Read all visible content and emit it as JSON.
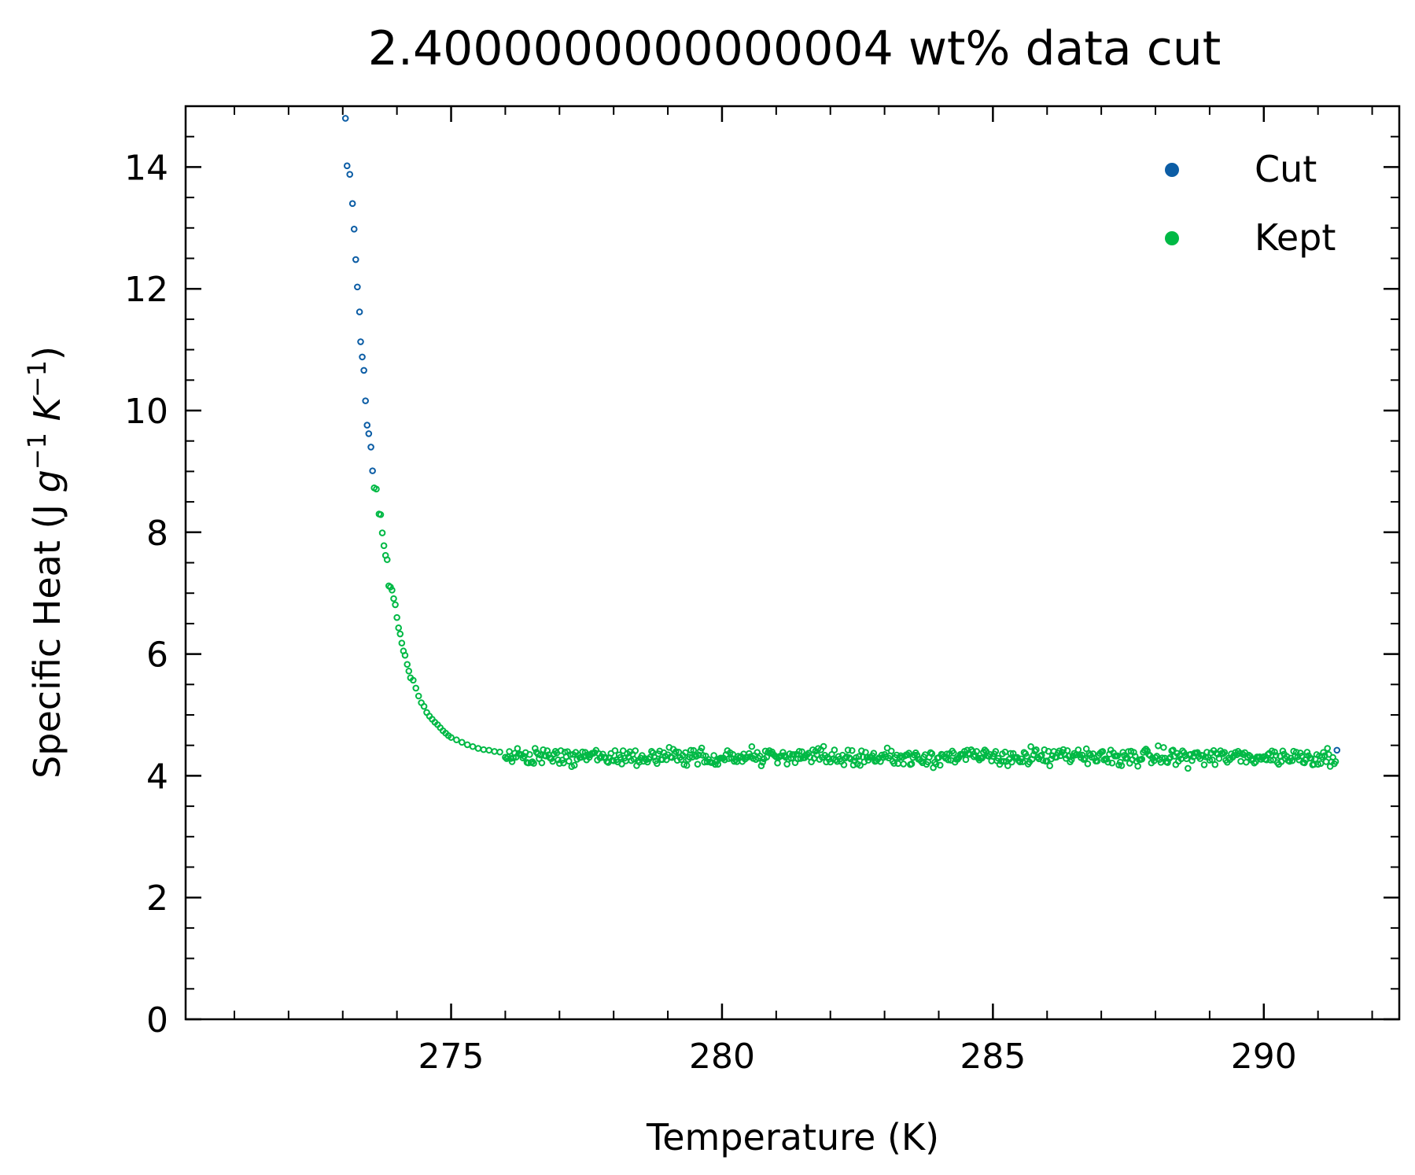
{
  "chart_data": {
    "type": "scatter",
    "title": "2.4000000000000004 wt% data cut",
    "xlabel": "Temperature (K)",
    "ylabel": {
      "prefix": "Specific Heat (J ",
      "g": "g",
      "g_exp": "−1",
      "k": "K",
      "k_exp": "−1",
      "suffix": ")"
    },
    "xlim": [
      270.1,
      292.5
    ],
    "ylim": [
      0,
      15
    ],
    "x_ticks": [
      {
        "value": 275,
        "label": "275"
      },
      {
        "value": 280,
        "label": "280"
      },
      {
        "value": 285,
        "label": "285"
      },
      {
        "value": 290,
        "label": "290"
      }
    ],
    "y_ticks": [
      {
        "value": 0,
        "label": "0"
      },
      {
        "value": 2,
        "label": "2"
      },
      {
        "value": 4,
        "label": "4"
      },
      {
        "value": 6,
        "label": "6"
      },
      {
        "value": 8,
        "label": "8"
      },
      {
        "value": 10,
        "label": "10"
      },
      {
        "value": 12,
        "label": "12"
      },
      {
        "value": 14,
        "label": "14"
      }
    ],
    "x_minor_step": 1,
    "y_minor_step": 0.5,
    "tick_direction": "in",
    "grid": false,
    "legend_position": "top-right",
    "series": [
      {
        "name": "Cut",
        "color": "#0C5DA5",
        "marker": "hollow-circle",
        "points": [
          [
            273.05,
            14.8
          ],
          [
            273.08,
            14.02
          ],
          [
            273.13,
            13.88
          ],
          [
            273.18,
            13.4
          ],
          [
            273.21,
            12.98
          ],
          [
            273.24,
            12.48
          ],
          [
            273.27,
            12.03
          ],
          [
            273.31,
            11.62
          ],
          [
            273.33,
            11.13
          ],
          [
            273.36,
            10.88
          ],
          [
            273.39,
            10.66
          ],
          [
            273.42,
            10.16
          ],
          [
            273.45,
            9.76
          ],
          [
            273.48,
            9.62
          ],
          [
            273.52,
            9.4
          ],
          [
            273.55,
            9.01
          ],
          [
            291.35,
            4.42
          ]
        ]
      },
      {
        "name": "Kept",
        "color": "#00B945",
        "marker": "hollow-circle",
        "head_points": [
          [
            273.58,
            8.73
          ],
          [
            273.62,
            8.71
          ],
          [
            273.67,
            8.3
          ],
          [
            273.7,
            8.29
          ],
          [
            273.73,
            7.99
          ],
          [
            273.76,
            7.78
          ],
          [
            273.79,
            7.62
          ],
          [
            273.82,
            7.55
          ],
          [
            273.85,
            7.12
          ],
          [
            273.88,
            7.1
          ],
          [
            273.91,
            7.05
          ],
          [
            273.94,
            6.91
          ],
          [
            273.97,
            6.81
          ],
          [
            274.0,
            6.6
          ],
          [
            274.03,
            6.43
          ],
          [
            274.06,
            6.33
          ],
          [
            274.09,
            6.18
          ],
          [
            274.12,
            6.05
          ],
          [
            274.15,
            5.98
          ],
          [
            274.19,
            5.83
          ],
          [
            274.22,
            5.72
          ],
          [
            274.25,
            5.61
          ],
          [
            274.3,
            5.57
          ],
          [
            274.35,
            5.44
          ],
          [
            274.4,
            5.31
          ],
          [
            274.45,
            5.2
          ],
          [
            274.5,
            5.14
          ],
          [
            274.55,
            5.04
          ],
          [
            274.6,
            4.98
          ],
          [
            274.65,
            4.93
          ],
          [
            274.7,
            4.88
          ],
          [
            274.75,
            4.84
          ],
          [
            274.8,
            4.79
          ],
          [
            274.85,
            4.74
          ],
          [
            274.9,
            4.7
          ],
          [
            274.95,
            4.66
          ],
          [
            275.0,
            4.63
          ],
          [
            275.1,
            4.59
          ],
          [
            275.2,
            4.55
          ],
          [
            275.3,
            4.51
          ],
          [
            275.4,
            4.48
          ],
          [
            275.5,
            4.45
          ],
          [
            275.6,
            4.43
          ],
          [
            275.7,
            4.42
          ],
          [
            275.8,
            4.4
          ],
          [
            275.9,
            4.39
          ]
        ],
        "plateau": {
          "x_start": 276.0,
          "x_end": 291.3,
          "step": 0.05,
          "y_mean": 4.31,
          "y_scatter": 0.07
        }
      }
    ]
  }
}
